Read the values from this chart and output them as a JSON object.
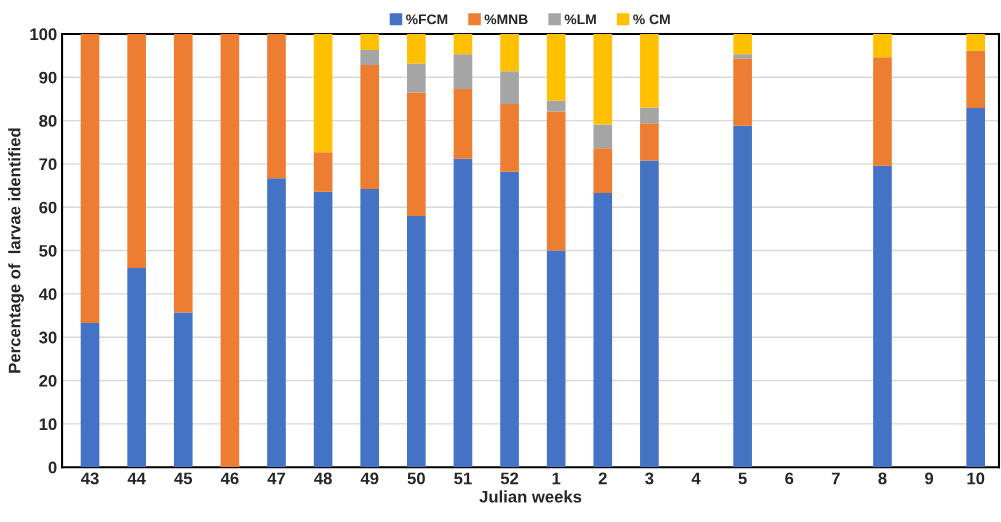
{
  "chart_data": {
    "type": "bar",
    "stacked": true,
    "xlabel": "Julian weeks",
    "ylabel": "Percentage of  larvae identified",
    "categories": [
      "43",
      "44",
      "45",
      "46",
      "47",
      "48",
      "49",
      "50",
      "51",
      "52",
      "1",
      "2",
      "3",
      "4",
      "5",
      "6",
      "7",
      "8",
      "9",
      "10"
    ],
    "series": [
      {
        "name": "%FCM",
        "color": "#4472c4",
        "values": [
          33.3,
          46.0,
          35.7,
          0,
          66.7,
          63.6,
          64.2,
          58.0,
          71.2,
          68.2,
          50.0,
          63.3,
          70.8,
          null,
          78.8,
          null,
          null,
          69.6,
          null,
          82.9
        ]
      },
      {
        "name": "%MNB",
        "color": "#ed7d31",
        "values": [
          66.7,
          54.0,
          64.3,
          100,
          33.3,
          9.1,
          28.6,
          28.5,
          16.1,
          15.6,
          32.1,
          10.3,
          8.6,
          null,
          15.5,
          null,
          null,
          25.0,
          null,
          13.2
        ]
      },
      {
        "name": "%LM",
        "color": "#a5a5a5",
        "values": [
          0,
          0,
          0,
          0,
          0,
          0,
          3.5,
          6.7,
          8.0,
          7.6,
          2.5,
          5.5,
          3.6,
          null,
          1.0,
          null,
          null,
          0,
          null,
          0
        ]
      },
      {
        "name": "% CM",
        "color": "#ffc000",
        "values": [
          0,
          0,
          0,
          0,
          0,
          27.3,
          3.7,
          6.8,
          4.7,
          8.6,
          15.4,
          20.9,
          17.0,
          null,
          4.7,
          null,
          null,
          5.4,
          null,
          3.9
        ]
      }
    ],
    "ylim": [
      0,
      100
    ],
    "yticks": [
      0,
      10,
      20,
      30,
      40,
      50,
      60,
      70,
      80,
      90,
      100
    ],
    "grid": "y",
    "legend": "top"
  }
}
